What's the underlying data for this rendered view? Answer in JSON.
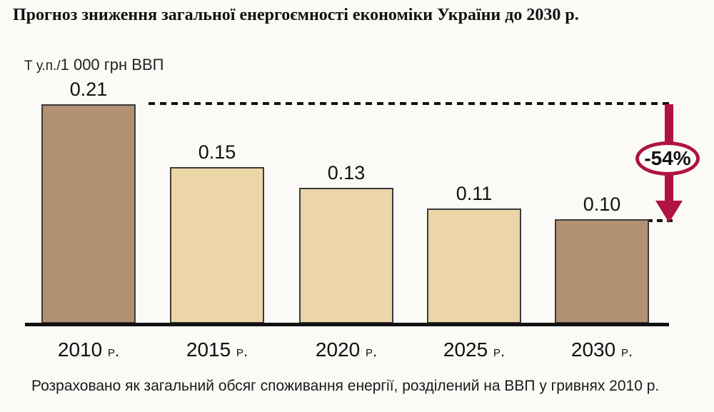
{
  "title": "Прогноз зниження загальної енергоємності економіки України до 2030 р.",
  "ylabel": {
    "prefix": "Т у.п./",
    "rest": "1 000 грн ВВП"
  },
  "footnote": "Розраховано як загальний обсяг споживання енергії, розділений на ВВП у гривнях 2010 р.",
  "annotation": {
    "label": "-54%"
  },
  "chart_data": {
    "type": "bar",
    "title": "Прогноз зниження загальної енергоємності економіки України до 2030 р.",
    "categories": [
      "2010",
      "2015",
      "2020",
      "2025",
      "2030"
    ],
    "category_suffix": "р.",
    "values": [
      0.21,
      0.15,
      0.13,
      0.11,
      0.1
    ],
    "value_labels": [
      "0.21",
      "0.15",
      "0.13",
      "0.11",
      "0.10"
    ],
    "xlabel": "",
    "ylabel": "Т у.п./1 000 грн ВВП",
    "ylim": [
      0,
      0.22
    ],
    "grid": false,
    "legend": false,
    "annotation": "-54% decrease from 2010 level to 2030 level",
    "bar_colors": [
      "#b29072",
      "#ecd5a7",
      "#ecd5a7",
      "#ecd5a7",
      "#b29072"
    ]
  },
  "colors": {
    "dark_bar": "#b29072",
    "light_bar": "#ecd5a7",
    "arrow": "#b01244",
    "axis": "#111111",
    "background": "#fbfaf6"
  }
}
